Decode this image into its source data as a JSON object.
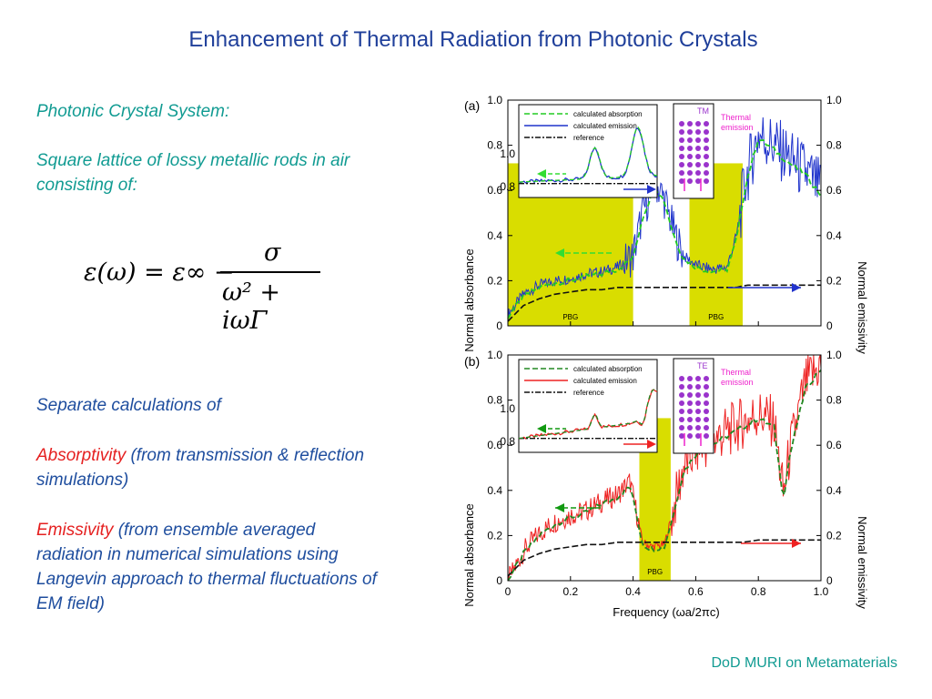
{
  "slide": {
    "title": "Enhancement of Thermal Radiation from Photonic Crystals",
    "system_heading": "Photonic Crystal System:",
    "system_desc": "Square lattice of lossy metallic rods in air consisting of:",
    "equation": {
      "lhs": "ε(ω) = ε∞ −",
      "numerator": "σ",
      "denominator": "ω² + iωΓ"
    },
    "calc_heading": "Separate calculations of",
    "absorptivity_term": "Absorptivity",
    "absorptivity_desc": " (from transmission & reflection simulations)",
    "emissivity_term": "Emissivity",
    "emissivity_desc": " (from ensemble averaged radiation in numerical simulations using Langevin approach to thermal fluctuations of EM field)",
    "footer": "DoD MURI on Metamaterials"
  },
  "figure": {
    "panel_a": {
      "label": "(a)",
      "polarization": "TM",
      "thermal_label": "Thermal emission",
      "pbg_label": "PBG",
      "legend": [
        "calculated absorption",
        "calculated emission",
        "reference"
      ]
    },
    "panel_b": {
      "label": "(b)",
      "polarization": "TE",
      "thermal_label": "Thermal emission",
      "pbg_label": "PBG",
      "legend": [
        "calculated absorption",
        "calculated emission",
        "reference"
      ]
    },
    "ylabel_left": "Normal absorbance",
    "ylabel_right": "Normal emissivity",
    "xlabel": "Frequency (ωa/2πc)",
    "yticks": [
      "0",
      "0.2",
      "0.4",
      "0.6",
      "0.8",
      "1.0"
    ],
    "xticks": [
      "0",
      "0.2",
      "0.4",
      "0.6",
      "0.8",
      "1.0"
    ],
    "inset_yticks": [
      "0.8",
      "1.0"
    ]
  },
  "chart_data": [
    {
      "type": "line",
      "xlabel": "Frequency (ωa/2πc)",
      "ylabel": "Normal absorbance",
      "y2label": "Normal emissivity",
      "xlim": [
        0,
        1.0
      ],
      "ylim": [
        0,
        1.0
      ],
      "bands": [
        [
          0.0,
          0.4
        ],
        [
          0.58,
          0.75
        ]
      ],
      "x": [
        0,
        0.05,
        0.1,
        0.15,
        0.2,
        0.25,
        0.3,
        0.35,
        0.4,
        0.43,
        0.47,
        0.5,
        0.53,
        0.56,
        0.6,
        0.65,
        0.7,
        0.73,
        0.76,
        0.8,
        0.85,
        0.9,
        0.95,
        1.0
      ],
      "series": [
        {
          "name": "calculated absorption",
          "color": "#22cc22",
          "values": [
            0.04,
            0.13,
            0.17,
            0.19,
            0.2,
            0.22,
            0.23,
            0.25,
            0.3,
            0.48,
            0.62,
            0.55,
            0.4,
            0.3,
            0.26,
            0.24,
            0.25,
            0.38,
            0.63,
            0.83,
            0.78,
            0.72,
            0.67,
            0.58
          ]
        },
        {
          "name": "calculated emission",
          "color": "#1f33cc",
          "values": [
            0.05,
            0.14,
            0.18,
            0.2,
            0.21,
            0.23,
            0.24,
            0.26,
            0.31,
            0.5,
            0.64,
            0.56,
            0.42,
            0.31,
            0.27,
            0.25,
            0.26,
            0.4,
            0.65,
            0.85,
            0.8,
            0.74,
            0.68,
            0.6
          ]
        },
        {
          "name": "reference",
          "color": "#111111",
          "values": [
            0.02,
            0.09,
            0.12,
            0.14,
            0.15,
            0.16,
            0.16,
            0.17,
            0.17,
            0.17,
            0.17,
            0.17,
            0.17,
            0.17,
            0.17,
            0.17,
            0.17,
            0.17,
            0.18,
            0.18,
            0.18,
            0.18,
            0.18,
            0.18
          ]
        }
      ]
    },
    {
      "type": "line",
      "xlabel": "Frequency (ωa/2πc)",
      "ylabel": "Normal absorbance",
      "y2label": "Normal emissivity",
      "xlim": [
        0,
        1.0
      ],
      "ylim": [
        0,
        1.0
      ],
      "bands": [
        [
          0.42,
          0.52
        ]
      ],
      "x": [
        0,
        0.05,
        0.1,
        0.15,
        0.2,
        0.25,
        0.3,
        0.35,
        0.39,
        0.41,
        0.43,
        0.46,
        0.5,
        0.53,
        0.56,
        0.6,
        0.65,
        0.7,
        0.75,
        0.8,
        0.85,
        0.88,
        0.9,
        0.95,
        1.0
      ],
      "series": [
        {
          "name": "calculated absorption",
          "color": "#228822",
          "values": [
            0.0,
            0.12,
            0.2,
            0.25,
            0.28,
            0.3,
            0.34,
            0.37,
            0.42,
            0.3,
            0.16,
            0.14,
            0.15,
            0.3,
            0.48,
            0.56,
            0.6,
            0.64,
            0.68,
            0.72,
            0.68,
            0.36,
            0.55,
            0.85,
            0.94
          ]
        },
        {
          "name": "calculated emission",
          "color": "#ee2222",
          "values": [
            0.0,
            0.13,
            0.21,
            0.26,
            0.29,
            0.31,
            0.35,
            0.38,
            0.44,
            0.31,
            0.17,
            0.15,
            0.16,
            0.32,
            0.5,
            0.58,
            0.62,
            0.66,
            0.7,
            0.74,
            0.7,
            0.38,
            0.57,
            0.87,
            0.96
          ]
        },
        {
          "name": "reference",
          "color": "#111111",
          "values": [
            0.02,
            0.09,
            0.12,
            0.14,
            0.15,
            0.16,
            0.16,
            0.17,
            0.17,
            0.17,
            0.17,
            0.17,
            0.17,
            0.17,
            0.17,
            0.17,
            0.17,
            0.17,
            0.17,
            0.18,
            0.18,
            0.18,
            0.18,
            0.18,
            0.18
          ]
        }
      ]
    }
  ]
}
